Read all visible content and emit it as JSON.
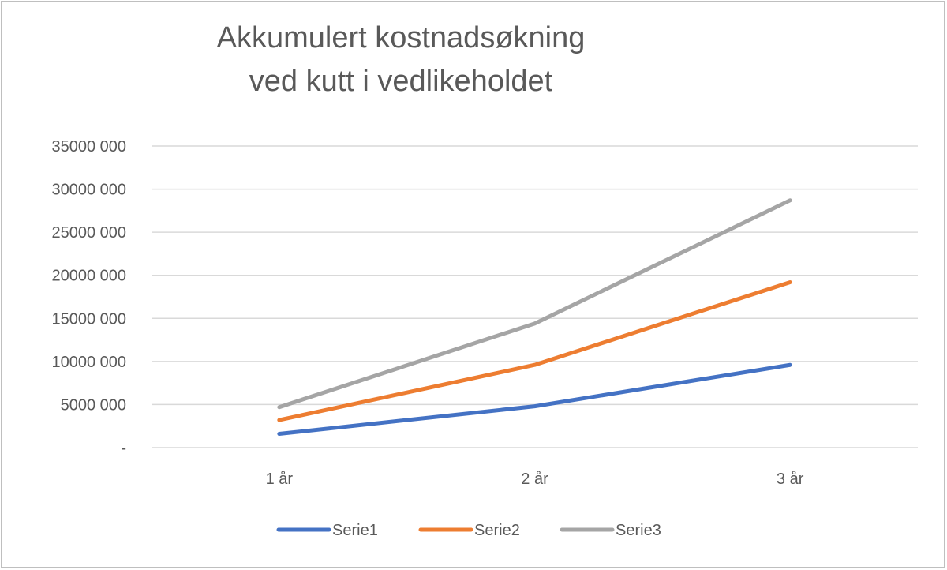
{
  "chart_data": {
    "type": "line",
    "title_lines": [
      "Akkumulert kostnadsøkning",
      "ved kutt i vedlikeholdet"
    ],
    "categories": [
      "1 år",
      "2 år",
      "3 år"
    ],
    "series": [
      {
        "name": "Serie1",
        "color": "#4472C4",
        "values": [
          1600000,
          4800000,
          9600000
        ]
      },
      {
        "name": "Serie2",
        "color": "#ED7D31",
        "values": [
          3200000,
          9600000,
          19200000
        ]
      },
      {
        "name": "Serie3",
        "color": "#A5A5A5",
        "values": [
          4700000,
          14400000,
          28700000
        ]
      }
    ],
    "ylim": [
      0,
      35000000
    ],
    "y_ticks": [
      0,
      5000000,
      10000000,
      15000000,
      20000000,
      25000000,
      30000000,
      35000000
    ],
    "y_tick_labels": [
      "-",
      "5000 000",
      "10000 000",
      "15000 000",
      "20000 000",
      "25000 000",
      "30000 000",
      "35000 000"
    ],
    "grid": true,
    "legend_position": "bottom"
  }
}
